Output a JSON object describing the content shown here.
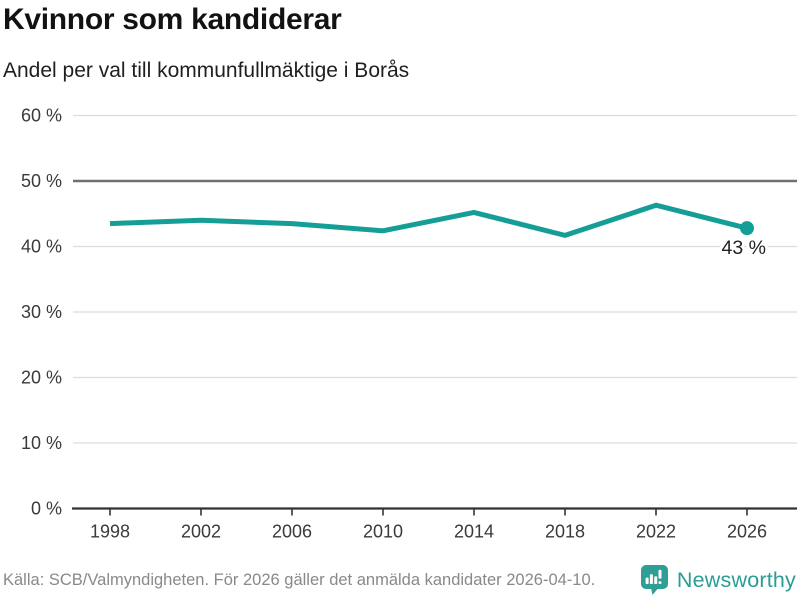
{
  "header": {
    "title": "Kvinnor som kandiderar",
    "subtitle": "Andel per val till kommunfullmäktige i Borås"
  },
  "footer": {
    "source": "Källa: SCB/Valmyndigheten. För 2026 gäller det anmälda kandidater 2026-04-10.",
    "brand": "Newsworthy"
  },
  "icons": {
    "brand_logo": "newsworthy-bar-chart-speech-bubble-icon"
  },
  "colors": {
    "accent": "#149E96",
    "grid": "#DCDCDC",
    "ref_line": "#707070",
    "axis": "#333333",
    "tick_text": "#3A3A3A",
    "annotation_text": "#222222",
    "title_text": "#121212",
    "muted_text": "#898989",
    "brand_teal": "#2A9D96"
  },
  "chart_data": {
    "type": "line",
    "title": "Kvinnor som kandiderar",
    "subtitle": "Andel per val till kommunfullmäktige i Borås",
    "x": [
      1998,
      2002,
      2006,
      2010,
      2014,
      2018,
      2022,
      2026
    ],
    "series": [
      {
        "name": "Andel kvinnor som kandiderar",
        "values": [
          43.5,
          44.0,
          43.5,
          42.4,
          45.2,
          41.7,
          46.3,
          42.8
        ]
      }
    ],
    "xlabel": "",
    "ylabel": "",
    "ylim": [
      0,
      60
    ],
    "ytick_step": 10,
    "ytick_suffix": " %",
    "xtick_labels": [
      "1998",
      "2002",
      "2006",
      "2010",
      "2014",
      "2018",
      "2022",
      "2026"
    ],
    "reference_line": 50,
    "end_label": "43 %",
    "grid": "horizontal",
    "legend": "none"
  }
}
